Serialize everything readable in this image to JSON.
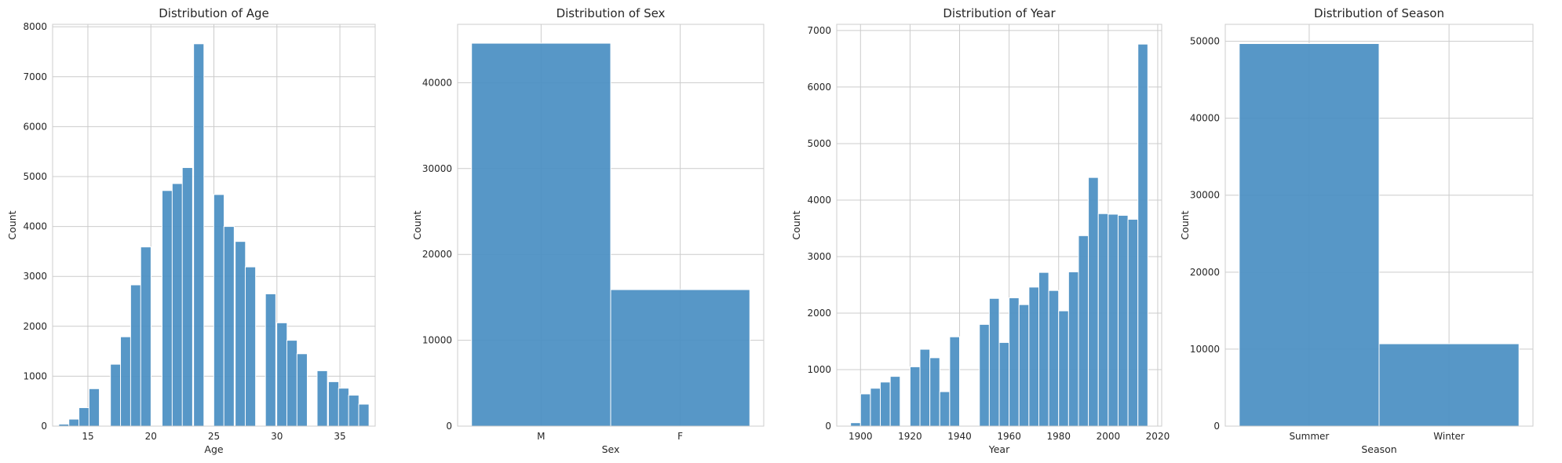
{
  "chart_data": [
    {
      "type": "bar",
      "title": "Distribution of Age",
      "xlabel": "Age",
      "ylabel": "Count",
      "xlim": [
        12.2,
        37.8
      ],
      "ylim": [
        0,
        8050
      ],
      "xticks": [
        15,
        20,
        25,
        30,
        35
      ],
      "yticks": [
        0,
        1000,
        2000,
        3000,
        4000,
        5000,
        6000,
        7000,
        8000
      ],
      "grid": true,
      "bin_width": 0.82,
      "bins": [
        {
          "x": 13.1,
          "y": 40
        },
        {
          "x": 13.9,
          "y": 140
        },
        {
          "x": 14.7,
          "y": 370
        },
        {
          "x": 15.5,
          "y": 750
        },
        {
          "x": 17.2,
          "y": 1240
        },
        {
          "x": 18.0,
          "y": 1790
        },
        {
          "x": 18.8,
          "y": 2830
        },
        {
          "x": 19.6,
          "y": 3590
        },
        {
          "x": 21.3,
          "y": 4720
        },
        {
          "x": 22.1,
          "y": 4860
        },
        {
          "x": 22.9,
          "y": 5180
        },
        {
          "x": 23.8,
          "y": 7660
        },
        {
          "x": 25.4,
          "y": 4640
        },
        {
          "x": 26.2,
          "y": 4000
        },
        {
          "x": 27.1,
          "y": 3700
        },
        {
          "x": 27.9,
          "y": 3190
        },
        {
          "x": 29.5,
          "y": 2650
        },
        {
          "x": 30.4,
          "y": 2070
        },
        {
          "x": 31.2,
          "y": 1720
        },
        {
          "x": 32.0,
          "y": 1450
        },
        {
          "x": 33.6,
          "y": 1110
        },
        {
          "x": 34.5,
          "y": 890
        },
        {
          "x": 35.3,
          "y": 760
        },
        {
          "x": 36.1,
          "y": 620
        },
        {
          "x": 36.9,
          "y": 440
        }
      ]
    },
    {
      "type": "bar",
      "title": "Distribution of Sex",
      "xlabel": "Sex",
      "ylabel": "Count",
      "categories": [
        "M",
        "F"
      ],
      "values": [
        44600,
        15900
      ],
      "ylim": [
        0,
        46800
      ],
      "yticks": [
        0,
        10000,
        20000,
        30000,
        40000
      ],
      "grid": true
    },
    {
      "type": "bar",
      "title": "Distribution of Year",
      "xlabel": "Year",
      "ylabel": "Count",
      "xlim": [
        1890.4,
        2021.6
      ],
      "ylim": [
        0,
        7110
      ],
      "xticks": [
        1900,
        1920,
        1940,
        1960,
        1980,
        2000,
        2020
      ],
      "yticks": [
        0,
        1000,
        2000,
        3000,
        4000,
        5000,
        6000,
        7000
      ],
      "grid": true,
      "bin_width": 4,
      "bins": [
        {
          "x": 1898,
          "y": 60
        },
        {
          "x": 1902,
          "y": 570
        },
        {
          "x": 1906,
          "y": 670
        },
        {
          "x": 1910,
          "y": 780
        },
        {
          "x": 1914,
          "y": 880
        },
        {
          "x": 1922,
          "y": 1050
        },
        {
          "x": 1926,
          "y": 1360
        },
        {
          "x": 1930,
          "y": 1210
        },
        {
          "x": 1934,
          "y": 610
        },
        {
          "x": 1938,
          "y": 1580
        },
        {
          "x": 1950,
          "y": 1800
        },
        {
          "x": 1954,
          "y": 2260
        },
        {
          "x": 1958,
          "y": 1480
        },
        {
          "x": 1962,
          "y": 2270
        },
        {
          "x": 1966,
          "y": 2150
        },
        {
          "x": 1970,
          "y": 2460
        },
        {
          "x": 1974,
          "y": 2720
        },
        {
          "x": 1978,
          "y": 2400
        },
        {
          "x": 1982,
          "y": 2040
        },
        {
          "x": 1986,
          "y": 2730
        },
        {
          "x": 1990,
          "y": 3370
        },
        {
          "x": 1994,
          "y": 4400
        },
        {
          "x": 1998,
          "y": 3760
        },
        {
          "x": 2002,
          "y": 3750
        },
        {
          "x": 2006,
          "y": 3730
        },
        {
          "x": 2010,
          "y": 3660
        },
        {
          "x": 2014,
          "y": 6760
        }
      ]
    },
    {
      "type": "bar",
      "title": "Distribution of Season",
      "xlabel": "Season",
      "ylabel": "Count",
      "categories": [
        "Summer",
        "Winter"
      ],
      "values": [
        49700,
        10700
      ],
      "ylim": [
        0,
        52200
      ],
      "yticks": [
        0,
        10000,
        20000,
        30000,
        40000,
        50000
      ],
      "grid": true
    }
  ]
}
